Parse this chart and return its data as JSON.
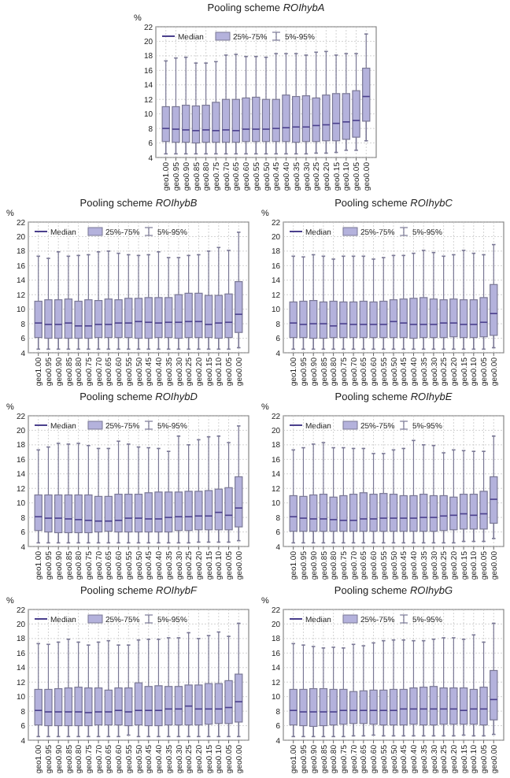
{
  "chart_data": [
    {
      "type": "box",
      "title": "Pooling scheme ROIhybA",
      "ylabel": "%",
      "categories": [
        "geo1.00",
        "geo0.95",
        "geo0.90",
        "geo0.85",
        "geo0.80",
        "geo0.75",
        "geo0.70",
        "geo0.65",
        "geo0.60",
        "geo0.55",
        "geo0.50",
        "geo0.45",
        "geo0.40",
        "geo0.35",
        "geo0.30",
        "geo0.25",
        "geo0.20",
        "geo0.15",
        "geo0.10",
        "geo0.05",
        "geo0.00"
      ],
      "ylim": [
        4,
        22
      ],
      "yticks": [
        4,
        6,
        8,
        10,
        12,
        14,
        16,
        18,
        20,
        22
      ],
      "grid": true,
      "annotations": [
        "Median",
        "25%-75%",
        "5%-95%"
      ],
      "series": [
        {
          "color": "#b4b2dc",
          "boxes": [
            {
              "low": 4.5,
              "q1": 6.2,
              "median": 8.0,
              "q3": 11.0,
              "high": 17.3
            },
            {
              "low": 4.5,
              "q1": 6.1,
              "median": 7.9,
              "q3": 11.0,
              "high": 17.7
            },
            {
              "low": 4.5,
              "q1": 6.1,
              "median": 7.8,
              "q3": 11.2,
              "high": 17.8
            },
            {
              "low": 4.5,
              "q1": 6.0,
              "median": 7.7,
              "q3": 11.1,
              "high": 17.0
            },
            {
              "low": 4.5,
              "q1": 6.1,
              "median": 7.8,
              "q3": 11.2,
              "high": 17.0
            },
            {
              "low": 4.5,
              "q1": 6.1,
              "median": 7.7,
              "q3": 11.6,
              "high": 17.2
            },
            {
              "low": 4.5,
              "q1": 6.1,
              "median": 7.8,
              "q3": 12.0,
              "high": 18.1
            },
            {
              "low": 4.5,
              "q1": 6.1,
              "median": 7.7,
              "q3": 12.0,
              "high": 18.2
            },
            {
              "low": 4.5,
              "q1": 6.2,
              "median": 7.9,
              "q3": 12.2,
              "high": 17.9
            },
            {
              "low": 4.5,
              "q1": 6.2,
              "median": 7.9,
              "q3": 12.3,
              "high": 17.9
            },
            {
              "low": 4.5,
              "q1": 6.2,
              "median": 7.9,
              "q3": 12.0,
              "high": 17.8
            },
            {
              "low": 4.5,
              "q1": 6.2,
              "median": 8.0,
              "q3": 12.0,
              "high": 18.3
            },
            {
              "low": 4.5,
              "q1": 6.2,
              "median": 8.1,
              "q3": 12.6,
              "high": 18.3
            },
            {
              "low": 4.5,
              "q1": 6.1,
              "median": 8.2,
              "q3": 12.4,
              "high": 18.3
            },
            {
              "low": 4.5,
              "q1": 6.2,
              "median": 8.2,
              "q3": 12.5,
              "high": 18.1
            },
            {
              "low": 4.6,
              "q1": 6.2,
              "median": 8.4,
              "q3": 12.2,
              "high": 18.5
            },
            {
              "low": 4.6,
              "q1": 6.3,
              "median": 8.5,
              "q3": 12.6,
              "high": 18.6
            },
            {
              "low": 4.7,
              "q1": 6.3,
              "median": 8.7,
              "q3": 12.8,
              "high": 18.1
            },
            {
              "low": 5.0,
              "q1": 6.5,
              "median": 8.9,
              "q3": 12.8,
              "high": 18.3
            },
            {
              "low": 5.0,
              "q1": 6.8,
              "median": 9.1,
              "q3": 13.2,
              "high": 18.3
            },
            {
              "low": 6.3,
              "q1": 9.0,
              "median": 12.4,
              "q3": 16.3,
              "high": 21.0
            }
          ]
        }
      ]
    },
    {
      "type": "box",
      "title": "Pooling scheme ROIhybB",
      "ylabel": "%",
      "categories": [
        "geo1.00",
        "geo0.95",
        "geo0.90",
        "geo0.85",
        "geo0.80",
        "geo0.75",
        "geo0.70",
        "geo0.65",
        "geo0.60",
        "geo0.55",
        "geo0.50",
        "geo0.45",
        "geo0.40",
        "geo0.35",
        "geo0.30",
        "geo0.25",
        "geo0.20",
        "geo0.15",
        "geo0.10",
        "geo0.05",
        "geo0.00"
      ],
      "ylim": [
        4,
        22
      ],
      "yticks": [
        4,
        6,
        8,
        10,
        12,
        14,
        16,
        18,
        20,
        22
      ],
      "grid": true,
      "annotations": [
        "Median",
        "25%-75%",
        "5%-95%"
      ],
      "series": [
        {
          "color": "#b4b2dc",
          "boxes": [
            {
              "low": 4.5,
              "q1": 6.1,
              "median": 8.1,
              "q3": 11.1,
              "high": 17.3
            },
            {
              "low": 4.5,
              "q1": 6.0,
              "median": 7.9,
              "q3": 11.3,
              "high": 17.0
            },
            {
              "low": 4.5,
              "q1": 6.0,
              "median": 7.9,
              "q3": 11.3,
              "high": 17.9
            },
            {
              "low": 4.5,
              "q1": 6.0,
              "median": 8.1,
              "q3": 11.4,
              "high": 17.3
            },
            {
              "low": 4.5,
              "q1": 6.0,
              "median": 7.7,
              "q3": 11.1,
              "high": 17.4
            },
            {
              "low": 4.5,
              "q1": 6.0,
              "median": 7.7,
              "q3": 11.3,
              "high": 17.5
            },
            {
              "low": 4.5,
              "q1": 6.1,
              "median": 7.9,
              "q3": 11.2,
              "high": 17.9
            },
            {
              "low": 4.5,
              "q1": 6.1,
              "median": 7.9,
              "q3": 11.4,
              "high": 18.0
            },
            {
              "low": 4.5,
              "q1": 6.1,
              "median": 8.1,
              "q3": 11.3,
              "high": 17.7
            },
            {
              "low": 4.5,
              "q1": 6.1,
              "median": 8.1,
              "q3": 11.5,
              "high": 17.5
            },
            {
              "low": 4.5,
              "q1": 6.0,
              "median": 8.3,
              "q3": 11.5,
              "high": 17.4
            },
            {
              "low": 4.5,
              "q1": 6.0,
              "median": 8.2,
              "q3": 11.6,
              "high": 17.5
            },
            {
              "low": 4.5,
              "q1": 6.1,
              "median": 8.1,
              "q3": 11.6,
              "high": 17.9
            },
            {
              "low": 4.5,
              "q1": 6.1,
              "median": 8.2,
              "q3": 11.6,
              "high": 17.1
            },
            {
              "low": 4.5,
              "q1": 6.0,
              "median": 8.2,
              "q3": 12.0,
              "high": 17.1
            },
            {
              "low": 4.5,
              "q1": 6.1,
              "median": 8.3,
              "q3": 12.2,
              "high": 17.4
            },
            {
              "low": 4.5,
              "q1": 6.1,
              "median": 8.3,
              "q3": 12.2,
              "high": 17.5
            },
            {
              "low": 4.5,
              "q1": 6.1,
              "median": 7.9,
              "q3": 11.9,
              "high": 18.0
            },
            {
              "low": 4.5,
              "q1": 6.0,
              "median": 8.1,
              "q3": 11.9,
              "high": 18.5
            },
            {
              "low": 4.5,
              "q1": 6.1,
              "median": 8.2,
              "q3": 12.1,
              "high": 18.1
            },
            {
              "low": 4.7,
              "q1": 6.8,
              "median": 9.3,
              "q3": 13.8,
              "high": 20.6
            }
          ]
        }
      ]
    },
    {
      "type": "box",
      "title": "Pooling scheme ROIhybC",
      "ylabel": "%",
      "categories": [
        "geo1.00",
        "geo0.95",
        "geo0.90",
        "geo0.85",
        "geo0.80",
        "geo0.75",
        "geo0.70",
        "geo0.65",
        "geo0.60",
        "geo0.55",
        "geo0.50",
        "geo0.45",
        "geo0.40",
        "geo0.35",
        "geo0.30",
        "geo0.25",
        "geo0.20",
        "geo0.15",
        "geo0.10",
        "geo0.05",
        "geo0.00"
      ],
      "ylim": [
        4,
        22
      ],
      "yticks": [
        4,
        6,
        8,
        10,
        12,
        14,
        16,
        18,
        20,
        22
      ],
      "grid": true,
      "annotations": [
        "Median",
        "25%-75%",
        "5%-95%"
      ],
      "series": [
        {
          "color": "#b4b2dc",
          "boxes": [
            {
              "low": 4.5,
              "q1": 6.1,
              "median": 8.1,
              "q3": 11.0,
              "high": 17.3
            },
            {
              "low": 4.5,
              "q1": 6.1,
              "median": 7.9,
              "q3": 11.1,
              "high": 17.2
            },
            {
              "low": 4.5,
              "q1": 6.0,
              "median": 8.0,
              "q3": 11.2,
              "high": 17.5
            },
            {
              "low": 4.5,
              "q1": 6.0,
              "median": 8.0,
              "q3": 11.0,
              "high": 17.3
            },
            {
              "low": 4.5,
              "q1": 6.1,
              "median": 7.7,
              "q3": 11.1,
              "high": 16.9
            },
            {
              "low": 4.5,
              "q1": 6.1,
              "median": 8.0,
              "q3": 11.0,
              "high": 17.3
            },
            {
              "low": 4.5,
              "q1": 6.1,
              "median": 7.9,
              "q3": 11.0,
              "high": 17.3
            },
            {
              "low": 4.5,
              "q1": 6.1,
              "median": 7.9,
              "q3": 11.1,
              "high": 17.3
            },
            {
              "low": 4.5,
              "q1": 6.1,
              "median": 7.9,
              "q3": 11.0,
              "high": 16.9
            },
            {
              "low": 4.5,
              "q1": 6.1,
              "median": 7.9,
              "q3": 11.1,
              "high": 17.1
            },
            {
              "low": 4.5,
              "q1": 6.1,
              "median": 8.3,
              "q3": 11.3,
              "high": 17.4
            },
            {
              "low": 4.5,
              "q1": 6.1,
              "median": 8.1,
              "q3": 11.4,
              "high": 17.4
            },
            {
              "low": 4.5,
              "q1": 6.0,
              "median": 7.9,
              "q3": 11.5,
              "high": 17.7
            },
            {
              "low": 4.5,
              "q1": 6.1,
              "median": 7.9,
              "q3": 11.6,
              "high": 18.1
            },
            {
              "low": 4.5,
              "q1": 6.1,
              "median": 7.9,
              "q3": 11.4,
              "high": 17.8
            },
            {
              "low": 4.5,
              "q1": 6.1,
              "median": 8.1,
              "q3": 11.3,
              "high": 17.3
            },
            {
              "low": 4.5,
              "q1": 6.2,
              "median": 8.1,
              "q3": 11.4,
              "high": 17.5
            },
            {
              "low": 4.5,
              "q1": 6.1,
              "median": 7.9,
              "q3": 11.3,
              "high": 18.1
            },
            {
              "low": 4.5,
              "q1": 6.1,
              "median": 7.9,
              "q3": 11.3,
              "high": 17.7
            },
            {
              "low": 4.5,
              "q1": 6.2,
              "median": 8.2,
              "q3": 11.6,
              "high": 17.5
            },
            {
              "low": 4.7,
              "q1": 6.4,
              "median": 9.4,
              "q3": 13.4,
              "high": 18.9
            }
          ]
        }
      ]
    },
    {
      "type": "box",
      "title": "Pooling scheme ROIhybD",
      "ylabel": "%",
      "categories": [
        "geo1.00",
        "geo0.95",
        "geo0.90",
        "geo0.85",
        "geo0.80",
        "geo0.75",
        "geo0.70",
        "geo0.65",
        "geo0.60",
        "geo0.55",
        "geo0.50",
        "geo0.45",
        "geo0.40",
        "geo0.35",
        "geo0.30",
        "geo0.25",
        "geo0.20",
        "geo0.15",
        "geo0.10",
        "geo0.05",
        "geo0.00"
      ],
      "ylim": [
        4,
        22
      ],
      "yticks": [
        4,
        6,
        8,
        10,
        12,
        14,
        16,
        18,
        20,
        22
      ],
      "grid": true,
      "annotations": [
        "Median",
        "25%-75%",
        "5%-95%"
      ],
      "series": [
        {
          "color": "#b4b2dc",
          "boxes": [
            {
              "low": 4.5,
              "q1": 6.2,
              "median": 8.1,
              "q3": 11.1,
              "high": 17.3
            },
            {
              "low": 4.5,
              "q1": 6.0,
              "median": 7.9,
              "q3": 11.1,
              "high": 17.7
            },
            {
              "low": 4.5,
              "q1": 5.9,
              "median": 7.9,
              "q3": 11.1,
              "high": 18.2
            },
            {
              "low": 4.5,
              "q1": 5.9,
              "median": 7.8,
              "q3": 11.1,
              "high": 18.1
            },
            {
              "low": 4.5,
              "q1": 5.9,
              "median": 7.7,
              "q3": 11.1,
              "high": 18.2
            },
            {
              "low": 4.5,
              "q1": 5.9,
              "median": 7.6,
              "q3": 11.1,
              "high": 17.9
            },
            {
              "low": 4.5,
              "q1": 6.0,
              "median": 7.5,
              "q3": 10.9,
              "high": 17.5
            },
            {
              "low": 4.5,
              "q1": 6.1,
              "median": 7.5,
              "q3": 10.9,
              "high": 17.5
            },
            {
              "low": 4.5,
              "q1": 6.0,
              "median": 7.6,
              "q3": 11.2,
              "high": 18.5
            },
            {
              "low": 4.5,
              "q1": 6.0,
              "median": 7.9,
              "q3": 11.2,
              "high": 18.1
            },
            {
              "low": 4.5,
              "q1": 6.0,
              "median": 7.9,
              "q3": 11.2,
              "high": 17.7
            },
            {
              "low": 4.5,
              "q1": 6.0,
              "median": 7.8,
              "q3": 11.4,
              "high": 17.6
            },
            {
              "low": 4.5,
              "q1": 6.0,
              "median": 7.8,
              "q3": 11.5,
              "high": 17.5
            },
            {
              "low": 4.5,
              "q1": 6.0,
              "median": 8.0,
              "q3": 11.5,
              "high": 17.1
            },
            {
              "low": 4.5,
              "q1": 6.2,
              "median": 8.1,
              "q3": 11.5,
              "high": 19.2
            },
            {
              "low": 4.5,
              "q1": 6.2,
              "median": 8.1,
              "q3": 11.6,
              "high": 18.0
            },
            {
              "low": 4.6,
              "q1": 6.3,
              "median": 8.2,
              "q3": 11.6,
              "high": 18.7
            },
            {
              "low": 4.6,
              "q1": 6.3,
              "median": 8.2,
              "q3": 11.7,
              "high": 19.1
            },
            {
              "low": 4.6,
              "q1": 6.3,
              "median": 8.7,
              "q3": 11.9,
              "high": 19.2
            },
            {
              "low": 4.6,
              "q1": 6.3,
              "median": 8.3,
              "q3": 12.1,
              "high": 18.3
            },
            {
              "low": 4.8,
              "q1": 6.7,
              "median": 9.3,
              "q3": 13.6,
              "high": 20.6
            }
          ]
        }
      ]
    },
    {
      "type": "box",
      "title": "Pooling scheme ROIhybE",
      "ylabel": "%",
      "categories": [
        "geo1.00",
        "geo0.95",
        "geo0.90",
        "geo0.85",
        "geo0.80",
        "geo0.75",
        "geo0.70",
        "geo0.65",
        "geo0.60",
        "geo0.55",
        "geo0.50",
        "geo0.45",
        "geo0.40",
        "geo0.35",
        "geo0.30",
        "geo0.25",
        "geo0.20",
        "geo0.15",
        "geo0.10",
        "geo0.05",
        "geo0.00"
      ],
      "ylim": [
        4,
        22
      ],
      "yticks": [
        4,
        6,
        8,
        10,
        12,
        14,
        16,
        18,
        20,
        22
      ],
      "grid": true,
      "annotations": [
        "Median",
        "25%-75%",
        "5%-95%"
      ],
      "series": [
        {
          "color": "#b4b2dc",
          "boxes": [
            {
              "low": 4.5,
              "q1": 6.1,
              "median": 8.1,
              "q3": 11.0,
              "high": 17.3
            },
            {
              "low": 4.5,
              "q1": 6.1,
              "median": 7.9,
              "q3": 10.9,
              "high": 17.6
            },
            {
              "low": 4.5,
              "q1": 6.1,
              "median": 7.8,
              "q3": 11.1,
              "high": 18.1
            },
            {
              "low": 4.5,
              "q1": 6.1,
              "median": 7.8,
              "q3": 11.2,
              "high": 18.3
            },
            {
              "low": 4.5,
              "q1": 6.1,
              "median": 7.7,
              "q3": 10.8,
              "high": 17.6
            },
            {
              "low": 4.5,
              "q1": 6.1,
              "median": 7.6,
              "q3": 11.0,
              "high": 17.6
            },
            {
              "low": 4.5,
              "q1": 6.1,
              "median": 7.6,
              "q3": 11.2,
              "high": 17.5
            },
            {
              "low": 4.5,
              "q1": 6.1,
              "median": 7.8,
              "q3": 11.4,
              "high": 17.5
            },
            {
              "low": 4.5,
              "q1": 6.1,
              "median": 7.8,
              "q3": 11.2,
              "high": 16.8
            },
            {
              "low": 4.5,
              "q1": 6.1,
              "median": 7.9,
              "q3": 11.3,
              "high": 16.8
            },
            {
              "low": 4.5,
              "q1": 6.1,
              "median": 7.9,
              "q3": 11.2,
              "high": 17.3
            },
            {
              "low": 4.5,
              "q1": 6.1,
              "median": 7.9,
              "q3": 11.0,
              "high": 17.5
            },
            {
              "low": 4.5,
              "q1": 6.1,
              "median": 7.9,
              "q3": 11.0,
              "high": 18.6
            },
            {
              "low": 4.5,
              "q1": 6.1,
              "median": 8.0,
              "q3": 11.2,
              "high": 18.0
            },
            {
              "low": 4.5,
              "q1": 6.1,
              "median": 8.0,
              "q3": 11.0,
              "high": 17.9
            },
            {
              "low": 4.5,
              "q1": 6.2,
              "median": 8.2,
              "q3": 11.0,
              "high": 16.9
            },
            {
              "low": 4.5,
              "q1": 6.3,
              "median": 8.3,
              "q3": 10.8,
              "high": 17.3
            },
            {
              "low": 4.7,
              "q1": 6.4,
              "median": 8.5,
              "q3": 11.2,
              "high": 17.2
            },
            {
              "low": 4.7,
              "q1": 6.4,
              "median": 8.3,
              "q3": 11.2,
              "high": 17.1
            },
            {
              "low": 4.7,
              "q1": 6.4,
              "median": 8.5,
              "q3": 11.6,
              "high": 17.1
            },
            {
              "low": 5.1,
              "q1": 7.2,
              "median": 10.5,
              "q3": 13.6,
              "high": 19.2
            }
          ]
        }
      ]
    },
    {
      "type": "box",
      "title": "Pooling scheme ROIhybF",
      "ylabel": "%",
      "categories": [
        "geo1.00",
        "geo0.95",
        "geo0.90",
        "geo0.85",
        "geo0.80",
        "geo0.75",
        "geo0.70",
        "geo0.65",
        "geo0.60",
        "geo0.55",
        "geo0.50",
        "geo0.45",
        "geo0.40",
        "geo0.35",
        "geo0.30",
        "geo0.25",
        "geo0.20",
        "geo0.15",
        "geo0.10",
        "geo0.05",
        "geo0.00"
      ],
      "ylim": [
        4,
        22
      ],
      "yticks": [
        4,
        6,
        8,
        10,
        12,
        14,
        16,
        18,
        20,
        22
      ],
      "grid": true,
      "annotations": [
        "Median",
        "25%-75%",
        "5%-95%"
      ],
      "series": [
        {
          "color": "#b4b2dc",
          "boxes": [
            {
              "low": 4.5,
              "q1": 6.1,
              "median": 8.1,
              "q3": 11.0,
              "high": 17.3
            },
            {
              "low": 4.5,
              "q1": 6.0,
              "median": 7.9,
              "q3": 11.0,
              "high": 17.2
            },
            {
              "low": 4.5,
              "q1": 6.0,
              "median": 7.9,
              "q3": 11.1,
              "high": 17.5
            },
            {
              "low": 4.5,
              "q1": 6.0,
              "median": 7.9,
              "q3": 11.2,
              "high": 17.9
            },
            {
              "low": 4.5,
              "q1": 6.0,
              "median": 7.9,
              "q3": 11.3,
              "high": 17.5
            },
            {
              "low": 4.5,
              "q1": 6.0,
              "median": 7.8,
              "q3": 11.2,
              "high": 17.1
            },
            {
              "low": 4.5,
              "q1": 6.1,
              "median": 7.9,
              "q3": 11.2,
              "high": 17.5
            },
            {
              "low": 4.5,
              "q1": 6.1,
              "median": 7.9,
              "q3": 10.9,
              "high": 17.7
            },
            {
              "low": 4.5,
              "q1": 6.1,
              "median": 8.1,
              "q3": 11.2,
              "high": 17.1
            },
            {
              "low": 4.7,
              "q1": 6.0,
              "median": 7.9,
              "q3": 11.2,
              "high": 17.1
            },
            {
              "low": 4.5,
              "q1": 6.1,
              "median": 8.1,
              "q3": 11.9,
              "high": 17.8
            },
            {
              "low": 4.5,
              "q1": 6.0,
              "median": 8.1,
              "q3": 11.4,
              "high": 17.9
            },
            {
              "low": 4.5,
              "q1": 6.0,
              "median": 8.1,
              "q3": 11.5,
              "high": 17.9
            },
            {
              "low": 4.5,
              "q1": 6.1,
              "median": 8.3,
              "q3": 11.4,
              "high": 18.1
            },
            {
              "low": 4.5,
              "q1": 6.1,
              "median": 8.3,
              "q3": 11.4,
              "high": 18.1
            },
            {
              "low": 4.5,
              "q1": 6.1,
              "median": 8.7,
              "q3": 11.6,
              "high": 18.8
            },
            {
              "low": 4.5,
              "q1": 6.1,
              "median": 8.3,
              "q3": 11.6,
              "high": 18.0
            },
            {
              "low": 4.5,
              "q1": 6.2,
              "median": 8.3,
              "q3": 11.8,
              "high": 18.4
            },
            {
              "low": 4.5,
              "q1": 6.3,
              "median": 8.3,
              "q3": 11.8,
              "high": 18.9
            },
            {
              "low": 4.5,
              "q1": 6.3,
              "median": 8.5,
              "q3": 12.2,
              "high": 18.3
            },
            {
              "low": 4.5,
              "q1": 6.5,
              "median": 9.3,
              "q3": 13.1,
              "high": 20.1
            }
          ]
        }
      ]
    },
    {
      "type": "box",
      "title": "Pooling scheme ROIhybG",
      "ylabel": "%",
      "categories": [
        "geo1.00",
        "geo0.95",
        "geo0.90",
        "geo0.85",
        "geo0.80",
        "geo0.75",
        "geo0.70",
        "geo0.65",
        "geo0.60",
        "geo0.55",
        "geo0.50",
        "geo0.45",
        "geo0.40",
        "geo0.35",
        "geo0.30",
        "geo0.25",
        "geo0.20",
        "geo0.15",
        "geo0.10",
        "geo0.05",
        "geo0.00"
      ],
      "ylim": [
        4,
        22
      ],
      "yticks": [
        4,
        6,
        8,
        10,
        12,
        14,
        16,
        18,
        20,
        22
      ],
      "grid": true,
      "annotations": [
        "Median",
        "25%-75%",
        "5%-95%"
      ],
      "series": [
        {
          "color": "#b4b2dc",
          "boxes": [
            {
              "low": 4.5,
              "q1": 6.1,
              "median": 8.1,
              "q3": 11.0,
              "high": 17.3
            },
            {
              "low": 4.5,
              "q1": 6.0,
              "median": 7.9,
              "q3": 11.0,
              "high": 17.1
            },
            {
              "low": 4.5,
              "q1": 5.9,
              "median": 7.9,
              "q3": 11.1,
              "high": 16.9
            },
            {
              "low": 4.5,
              "q1": 6.0,
              "median": 7.9,
              "q3": 11.1,
              "high": 16.7
            },
            {
              "low": 4.5,
              "q1": 6.1,
              "median": 7.9,
              "q3": 11.0,
              "high": 16.8
            },
            {
              "low": 4.5,
              "q1": 6.2,
              "median": 8.1,
              "q3": 11.0,
              "high": 16.7
            },
            {
              "low": 4.6,
              "q1": 6.3,
              "median": 8.1,
              "q3": 10.7,
              "high": 17.2
            },
            {
              "low": 4.6,
              "q1": 6.3,
              "median": 8.1,
              "q3": 10.8,
              "high": 17.0
            },
            {
              "low": 4.7,
              "q1": 6.2,
              "median": 8.1,
              "q3": 10.9,
              "high": 17.4
            },
            {
              "low": 4.6,
              "q1": 6.1,
              "median": 8.1,
              "q3": 10.9,
              "high": 17.7
            },
            {
              "low": 4.6,
              "q1": 6.1,
              "median": 8.1,
              "q3": 11.0,
              "high": 17.8
            },
            {
              "low": 4.6,
              "q1": 6.1,
              "median": 8.3,
              "q3": 11.0,
              "high": 17.8
            },
            {
              "low": 4.6,
              "q1": 6.2,
              "median": 8.3,
              "q3": 11.2,
              "high": 17.7
            },
            {
              "low": 4.6,
              "q1": 6.1,
              "median": 8.3,
              "q3": 11.3,
              "high": 17.7
            },
            {
              "low": 4.6,
              "q1": 6.1,
              "median": 8.3,
              "q3": 11.4,
              "high": 17.9
            },
            {
              "low": 4.6,
              "q1": 6.2,
              "median": 8.3,
              "q3": 11.2,
              "high": 18.1
            },
            {
              "low": 4.6,
              "q1": 6.2,
              "median": 8.3,
              "q3": 11.2,
              "high": 18.1
            },
            {
              "low": 4.7,
              "q1": 6.2,
              "median": 8.1,
              "q3": 11.2,
              "high": 17.9
            },
            {
              "low": 4.6,
              "q1": 6.2,
              "median": 8.3,
              "q3": 11.0,
              "high": 18.5
            },
            {
              "low": 4.6,
              "q1": 6.1,
              "median": 8.3,
              "q3": 11.3,
              "high": 17.5
            },
            {
              "low": 4.8,
              "q1": 6.8,
              "median": 9.6,
              "q3": 13.6,
              "high": 20.1
            }
          ]
        }
      ]
    }
  ]
}
